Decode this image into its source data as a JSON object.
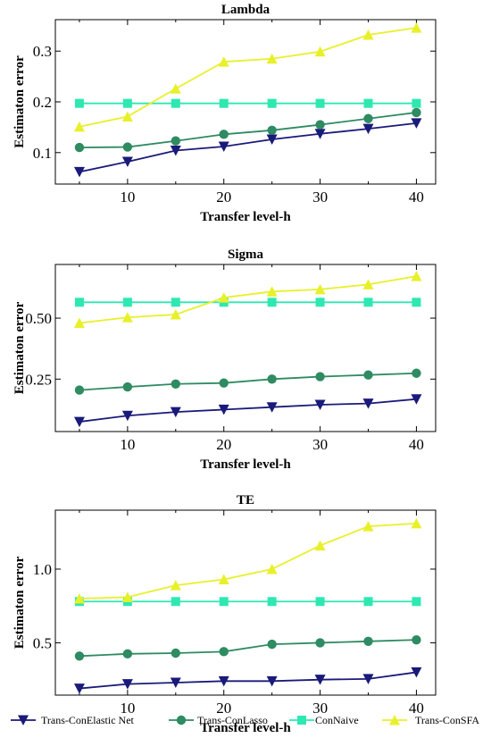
{
  "chart_data": [
    {
      "type": "line",
      "title": "Lambda",
      "xlabel": "Transfer level-h",
      "ylabel": "Estimaton error",
      "x": [
        5,
        10,
        15,
        20,
        25,
        30,
        35,
        40
      ],
      "xticks": [
        10,
        20,
        30,
        40
      ],
      "xtick_labels": [
        "10",
        "20",
        "30",
        "40"
      ],
      "xlim": [
        2.5,
        42
      ],
      "yticks": [
        0.1,
        0.2,
        0.3
      ],
      "ytick_labels": [
        "0.1",
        "0.2",
        "0.3"
      ],
      "ylim": [
        0.038,
        0.362
      ],
      "grid": false,
      "series": [
        {
          "name": "Trans-ConElastic Net",
          "color": "#1a1a7a",
          "marker": "triangle-down",
          "values": [
            0.062,
            0.082,
            0.104,
            0.112,
            0.126,
            0.137,
            0.147,
            0.158
          ]
        },
        {
          "name": "Trans-ConLasso",
          "color": "#2e8b62",
          "marker": "circle",
          "values": [
            0.11,
            0.111,
            0.123,
            0.136,
            0.144,
            0.155,
            0.167,
            0.179
          ]
        },
        {
          "name": "ConNaive",
          "color": "#2ee8b2",
          "marker": "square",
          "values": [
            0.197,
            0.197,
            0.197,
            0.197,
            0.197,
            0.197,
            0.197,
            0.197
          ]
        },
        {
          "name": "Trans-ConSFA",
          "color": "#e8f02a",
          "marker": "triangle-up",
          "values": [
            0.151,
            0.171,
            0.226,
            0.279,
            0.285,
            0.299,
            0.332,
            0.346
          ]
        }
      ]
    },
    {
      "type": "line",
      "title": "Sigma",
      "xlabel": "Transfer level-h",
      "ylabel": "Estimaton error",
      "x": [
        5,
        10,
        15,
        20,
        25,
        30,
        35,
        40
      ],
      "xticks": [
        10,
        20,
        30,
        40
      ],
      "xtick_labels": [
        "10",
        "20",
        "30",
        "40"
      ],
      "xlim": [
        2.5,
        42
      ],
      "yticks": [
        0.25,
        0.5
      ],
      "ytick_labels": [
        "0.25",
        "0.50"
      ],
      "ylim": [
        0.035,
        0.72
      ],
      "grid": false,
      "series": [
        {
          "name": "Trans-ConElastic Net",
          "color": "#1a1a7a",
          "marker": "triangle-down",
          "values": [
            0.075,
            0.1,
            0.115,
            0.125,
            0.135,
            0.145,
            0.15,
            0.168
          ]
        },
        {
          "name": "Trans-ConLasso",
          "color": "#2e8b62",
          "marker": "circle",
          "values": [
            0.205,
            0.218,
            0.23,
            0.234,
            0.25,
            0.26,
            0.267,
            0.274
          ]
        },
        {
          "name": "ConNaive",
          "color": "#2ee8b2",
          "marker": "square",
          "values": [
            0.565,
            0.565,
            0.565,
            0.565,
            0.565,
            0.565,
            0.565,
            0.565
          ]
        },
        {
          "name": "Trans-ConSFA",
          "color": "#e8f02a",
          "marker": "triangle-up",
          "values": [
            0.48,
            0.503,
            0.515,
            0.584,
            0.609,
            0.618,
            0.638,
            0.672
          ]
        }
      ]
    },
    {
      "type": "line",
      "title": "TE",
      "xlabel": "Transfer level-h",
      "ylabel": "Estimaton error",
      "x": [
        5,
        10,
        15,
        20,
        25,
        30,
        35,
        40
      ],
      "xticks": [
        10,
        20,
        30,
        40
      ],
      "xtick_labels": [
        "10",
        "20",
        "30",
        "40"
      ],
      "xlim": [
        2.5,
        42
      ],
      "yticks": [
        0.5,
        1.0
      ],
      "ytick_labels": [
        "0.5",
        "1.0"
      ],
      "ylim": [
        0.145,
        1.4
      ],
      "grid": false,
      "series": [
        {
          "name": "Trans-ConElastic Net",
          "color": "#1a1a7a",
          "marker": "triangle-down",
          "values": [
            0.19,
            0.22,
            0.23,
            0.24,
            0.24,
            0.25,
            0.255,
            0.3
          ]
        },
        {
          "name": "Trans-ConLasso",
          "color": "#2e8b62",
          "marker": "circle",
          "values": [
            0.41,
            0.425,
            0.43,
            0.44,
            0.49,
            0.5,
            0.51,
            0.52
          ]
        },
        {
          "name": "ConNaive",
          "color": "#2ee8b2",
          "marker": "square",
          "values": [
            0.78,
            0.78,
            0.78,
            0.78,
            0.78,
            0.78,
            0.78,
            0.78
          ]
        },
        {
          "name": "Trans-ConSFA",
          "color": "#e8f02a",
          "marker": "triangle-up",
          "values": [
            0.8,
            0.81,
            0.89,
            0.93,
            1.0,
            1.16,
            1.29,
            1.31
          ]
        }
      ]
    }
  ],
  "legend": {
    "placement": "bottom",
    "items": [
      {
        "label": "Trans-ConElastic Net",
        "color": "#1a1a7a",
        "marker": "triangle-down"
      },
      {
        "label": "Trans-ConLasso",
        "color": "#2e8b62",
        "marker": "circle"
      },
      {
        "label": "ConNaive",
        "color": "#2ee8b2",
        "marker": "square"
      },
      {
        "label": "Trans-ConSFA",
        "color": "#e8f02a",
        "marker": "triangle-up"
      }
    ]
  }
}
